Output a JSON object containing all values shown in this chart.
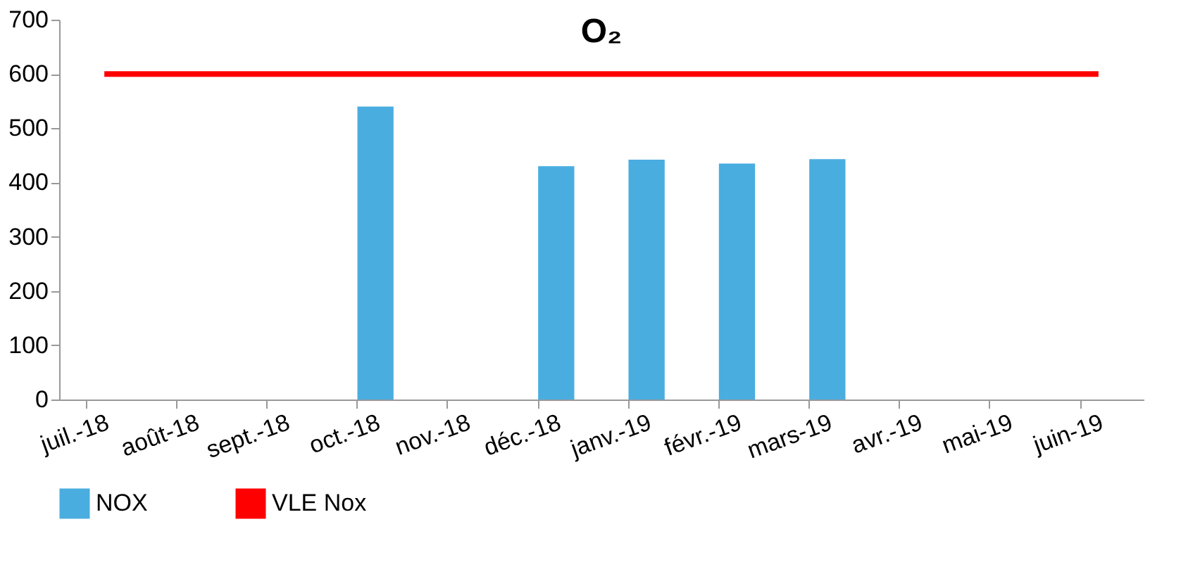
{
  "chart_data": {
    "type": "bar",
    "title": "O₂",
    "categories": [
      "juil.-18",
      "août-18",
      "sept.-18",
      "oct.-18",
      "nov.-18",
      "déc.-18",
      "janv.-19",
      "févr.-19",
      "mars-19",
      "avr.-19",
      "mai-19",
      "juin-19"
    ],
    "series": [
      {
        "name": "NOX",
        "color": "#4aade0",
        "values": [
          null,
          null,
          null,
          540,
          null,
          430,
          442,
          435,
          443,
          null,
          null,
          null
        ]
      },
      {
        "name": "VLE Nox",
        "type": "line",
        "color": "#ff0000",
        "values": [
          600,
          600,
          600,
          600,
          600,
          600,
          600,
          600,
          600,
          600,
          600,
          600
        ]
      }
    ],
    "ylim": [
      0,
      700
    ],
    "yticks": [
      0,
      100,
      200,
      300,
      400,
      500,
      600,
      700
    ],
    "grid": false,
    "legend": "bottom"
  }
}
